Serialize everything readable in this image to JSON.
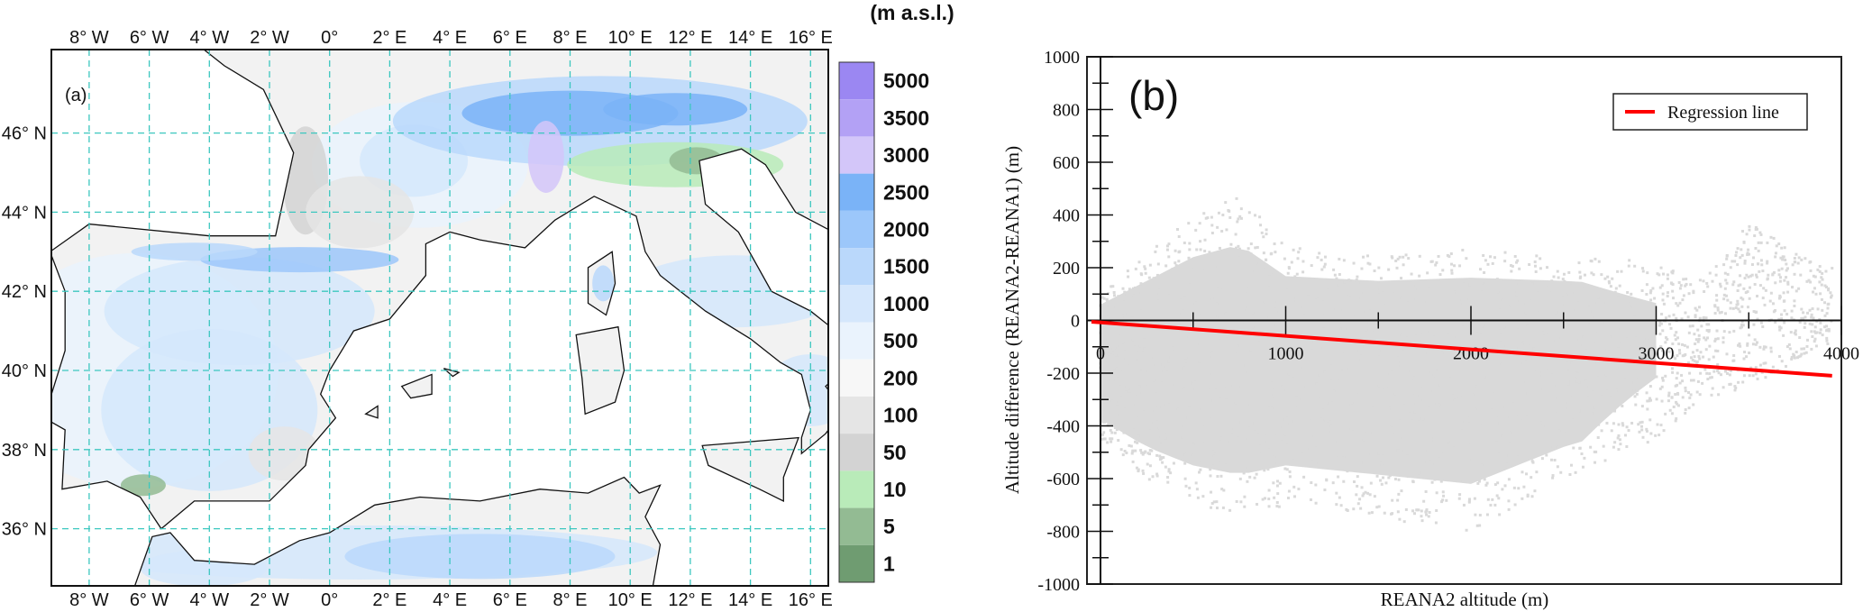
{
  "panel_a": {
    "label": "(a)",
    "colorbar_unit": "(m a.s.l.)",
    "colorbar": [
      {
        "label": "5000",
        "color": "#9b87f2"
      },
      {
        "label": "3500",
        "color": "#b3a1f5"
      },
      {
        "label": "3000",
        "color": "#d3c6f9"
      },
      {
        "label": "2500",
        "color": "#7ab3f7"
      },
      {
        "label": "2000",
        "color": "#9cc7fa"
      },
      {
        "label": "1500",
        "color": "#bad8fb"
      },
      {
        "label": "1000",
        "color": "#d5e7fc"
      },
      {
        "label": "500",
        "color": "#eaf3fd"
      },
      {
        "label": "200",
        "color": "#f7f7f7"
      },
      {
        "label": "100",
        "color": "#e5e5e5"
      },
      {
        "label": "50",
        "color": "#d3d3d3"
      },
      {
        "label": "10",
        "color": "#b9ebb9"
      },
      {
        "label": "5",
        "color": "#93bb93"
      },
      {
        "label": "1",
        "color": "#6f9c71"
      }
    ],
    "lon_ticks": [
      {
        "lon": -8,
        "label": "8° W"
      },
      {
        "lon": -6,
        "label": "6° W"
      },
      {
        "lon": -4,
        "label": "4° W"
      },
      {
        "lon": -2,
        "label": "2° W"
      },
      {
        "lon": 0,
        "label": "0°"
      },
      {
        "lon": 2,
        "label": "2° E"
      },
      {
        "lon": 4,
        "label": "4° E"
      },
      {
        "lon": 6,
        "label": "6° E"
      },
      {
        "lon": 8,
        "label": "8° E"
      },
      {
        "lon": 10,
        "label": "10° E"
      },
      {
        "lon": 12,
        "label": "12° E"
      },
      {
        "lon": 14,
        "label": "14° E"
      },
      {
        "lon": 16,
        "label": "16° E"
      }
    ],
    "lat_ticks": [
      {
        "lat": 46,
        "label": "46° N"
      },
      {
        "lat": 44,
        "label": "44° N"
      },
      {
        "lat": 42,
        "label": "42° N"
      },
      {
        "lat": 40,
        "label": "40° N"
      },
      {
        "lat": 38,
        "label": "38° N"
      },
      {
        "lat": 36,
        "label": "36° N"
      }
    ],
    "grid_color": "#3cc7bf",
    "land_color": "#f2f2f2"
  },
  "chart_data": {
    "type": "scatter",
    "panel_label": "(b)",
    "xlabel": "REANA2 altitude (m)",
    "ylabel": "Altitude difference (REANA2-REANA1) (m)",
    "xlim": [
      0,
      4000
    ],
    "ylim": [
      -1000,
      1000
    ],
    "x_ticks": [
      0,
      1000,
      2000,
      3000,
      4000
    ],
    "y_ticks": [
      1000,
      800,
      600,
      400,
      200,
      0,
      -200,
      -400,
      -600,
      -800,
      -1000
    ],
    "grid": false,
    "point_color": "#d9d9d9",
    "scatter_envelope": [
      {
        "x": 0,
        "ymin": -450,
        "ymax": 100
      },
      {
        "x": 250,
        "ymin": -600,
        "ymax": 250
      },
      {
        "x": 500,
        "ymin": -700,
        "ymax": 400
      },
      {
        "x": 750,
        "ymin": -750,
        "ymax": 480
      },
      {
        "x": 1000,
        "ymin": -700,
        "ymax": 280
      },
      {
        "x": 1500,
        "ymin": -750,
        "ymax": 250
      },
      {
        "x": 2000,
        "ymin": -800,
        "ymax": 270
      },
      {
        "x": 2500,
        "ymin": -600,
        "ymax": 250
      },
      {
        "x": 3000,
        "ymin": -450,
        "ymax": 220
      },
      {
        "x": 3250,
        "ymin": -300,
        "ymax": 150
      },
      {
        "x": 3500,
        "ymin": -250,
        "ymax": 370
      },
      {
        "x": 3900,
        "ymin": -100,
        "ymax": 200
      }
    ],
    "series": [
      {
        "name": "Regression line",
        "type": "line",
        "color": "#ff0000",
        "x": [
          0,
          3950
        ],
        "y": [
          -5,
          -210
        ]
      }
    ],
    "legend": {
      "position": "top-right",
      "entries": [
        "Regression line"
      ]
    }
  }
}
